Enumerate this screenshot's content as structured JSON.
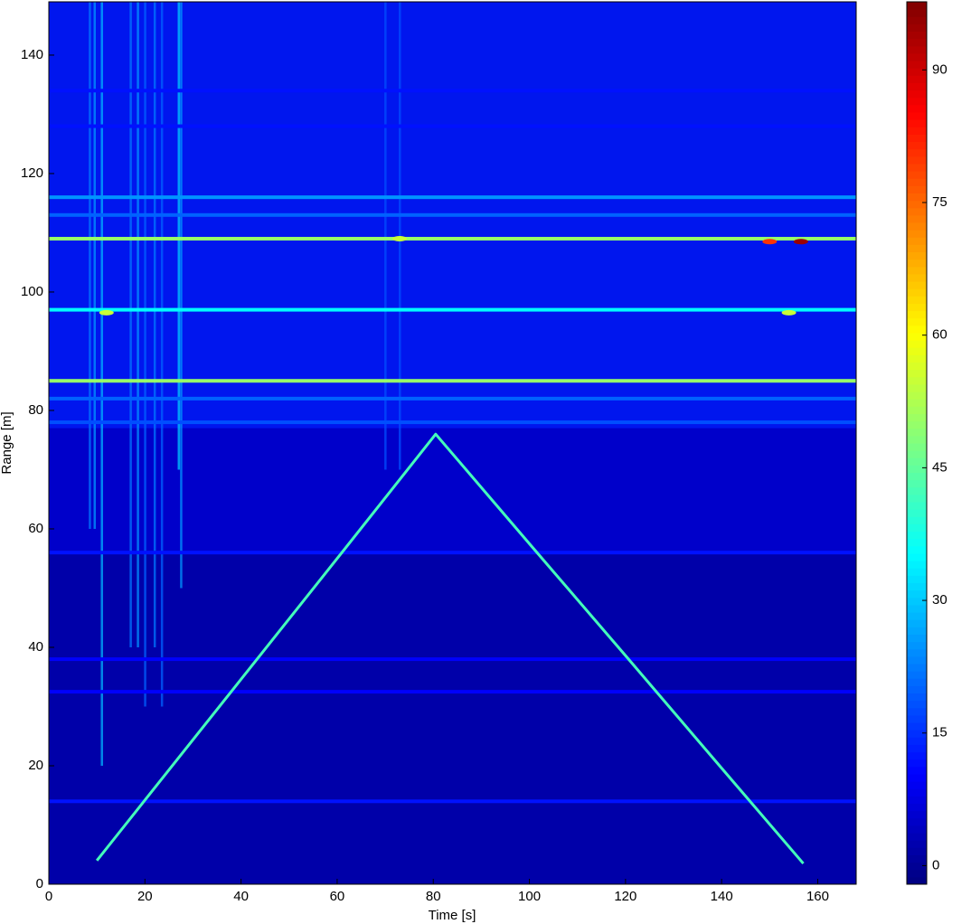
{
  "chart_data": {
    "type": "heatmap",
    "xlabel": "Time [s]",
    "ylabel": "Range [m]",
    "xlim": [
      0,
      168
    ],
    "ylim": [
      0,
      149
    ],
    "xticks": [
      0,
      20,
      40,
      60,
      80,
      100,
      120,
      140,
      160
    ],
    "yticks": [
      0,
      20,
      40,
      60,
      80,
      100,
      120,
      140
    ],
    "colormap": "jet",
    "clim": [
      -2.1,
      97.7
    ],
    "cticks": [
      0,
      15,
      30,
      45,
      60,
      75,
      90
    ],
    "background": 2,
    "regions": [
      {
        "y": [
          56,
          77
        ],
        "value": 6
      },
      {
        "y": [
          77,
          149
        ],
        "value": 13
      }
    ],
    "streaks": {
      "x": [
        8.5,
        9.5,
        11,
        17,
        18.5,
        20,
        22,
        23.5,
        27,
        27.5,
        70,
        73
      ],
      "bottom": [
        60,
        60,
        20,
        40,
        40,
        30,
        40,
        30,
        70,
        50,
        70,
        70
      ],
      "values": [
        22,
        25,
        28,
        22,
        25,
        20,
        22,
        20,
        30,
        25,
        18,
        18
      ]
    },
    "bands": {
      "y": [
        14,
        32.5,
        38,
        56,
        78,
        82,
        85,
        97,
        109,
        113,
        116,
        128,
        134
      ],
      "values": [
        12,
        10,
        10,
        12,
        18,
        20,
        50,
        35,
        50,
        20,
        25,
        12,
        12
      ]
    },
    "hotspots": {
      "x": [
        156.5,
        150,
        12,
        154,
        73
      ],
      "y": [
        108.5,
        108.5,
        96.5,
        96.5,
        109
      ],
      "values": [
        95,
        80,
        55,
        55,
        55
      ]
    },
    "track": {
      "x": [
        10,
        20,
        40,
        60,
        80.5,
        100,
        120,
        140,
        157
      ],
      "y": [
        4,
        14.2,
        34.6,
        55,
        76,
        57.5,
        38.6,
        19.6,
        3.5
      ],
      "value": 42
    }
  }
}
